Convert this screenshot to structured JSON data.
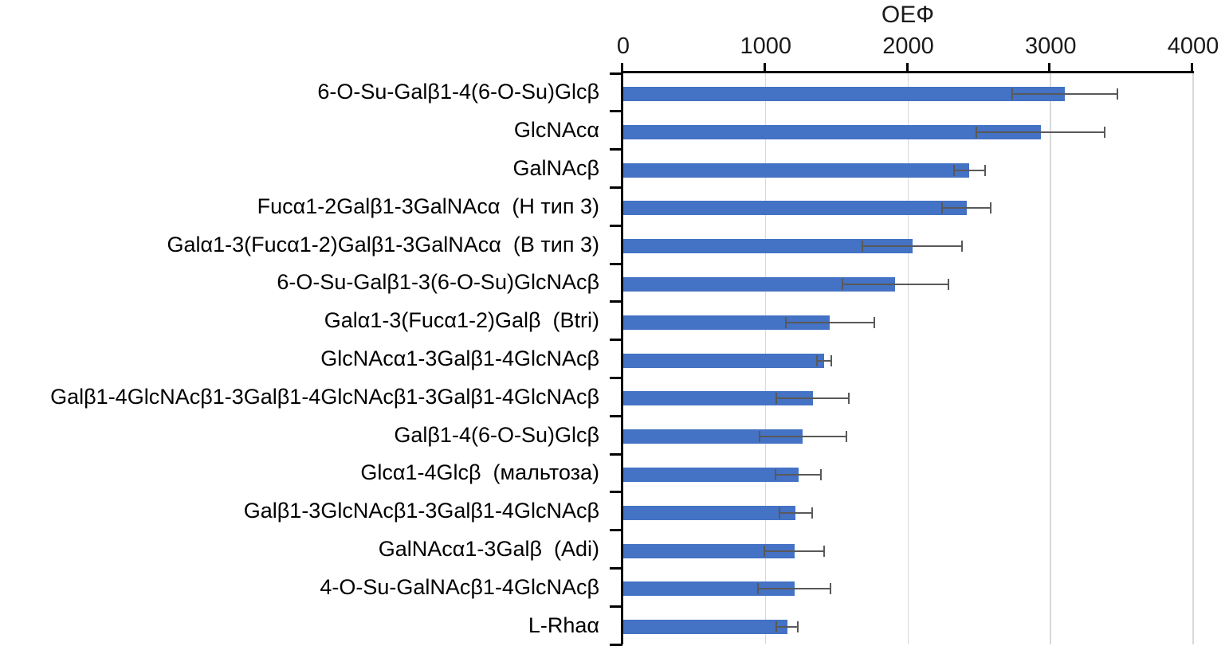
{
  "chart_data": {
    "type": "bar",
    "orientation": "horizontal",
    "title": "ОЕФ",
    "xlabel": "ОЕФ",
    "ylabel": "",
    "xlim": [
      0,
      4000
    ],
    "xticks": [
      0,
      1000,
      2000,
      3000,
      4000
    ],
    "grid": true,
    "legend": false,
    "bar_color": "#4472C4",
    "error_bar_color": "#595959",
    "categories": [
      "6-O-Su-Galβ1-4(6-O-Su)Glcβ",
      "GlcNAcα",
      "GalNAcβ",
      "Fucα1-2Galβ1-3GalNAcα  (H тип 3)",
      "Galα1-3(Fucα1-2)Galβ1-3GalNAcα  (B тип 3)",
      "6-O-Su-Galβ1-3(6-O-Su)GlcNAcβ",
      "Galα1-3(Fucα1-2)Galβ  (Btri)",
      "GlcNAcα1-3Galβ1-4GlcNAcβ",
      "Galβ1-4GlcNAcβ1-3Galβ1-4GlcNAcβ1-3Galβ1-4GlcNAcβ",
      "Galβ1-4(6-O-Su)Glcβ",
      "Glcα1-4Glcβ  (мальтоза)",
      "Galβ1-3GlcNAcβ1-3Galβ1-4GlcNAcβ",
      "GalNAcα1-3Galβ  (Adi)",
      "4-O-Su-GalNAcβ1-4GlcNAcβ",
      "L-Rhaα"
    ],
    "values": [
      3100,
      2930,
      2430,
      2410,
      2030,
      1910,
      1450,
      1410,
      1330,
      1260,
      1230,
      1210,
      1200,
      1200,
      1150
    ],
    "errors": [
      370,
      450,
      110,
      170,
      350,
      370,
      310,
      50,
      255,
      305,
      160,
      115,
      210,
      255,
      75
    ]
  }
}
